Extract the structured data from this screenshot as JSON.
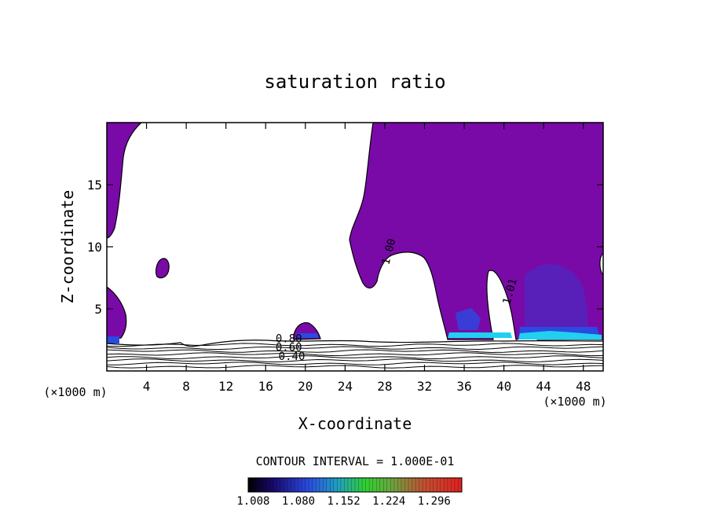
{
  "chart_data": {
    "type": "contour",
    "title": "saturation ratio",
    "xlabel": "X-coordinate",
    "ylabel": "Z-coordinate",
    "x_unit_label": "(×1000 m)",
    "x_unit_label_right": "(×1000 m)",
    "xlim": [
      0,
      50
    ],
    "ylim": [
      0,
      20
    ],
    "x_ticks": [
      4,
      8,
      12,
      16,
      20,
      24,
      28,
      32,
      36,
      40,
      44,
      48
    ],
    "y_ticks": [
      5,
      10,
      15
    ],
    "contour_interval_text": "CONTOUR INTERVAL = 1.000E-01",
    "contour_labels": [
      {
        "text": "0.80",
        "x": 17.0,
        "z": 2.3
      },
      {
        "text": "0.60",
        "x": 17.0,
        "z": 1.6
      },
      {
        "text": "0.40",
        "x": 17.3,
        "z": 0.9
      },
      {
        "text": "1.00",
        "x": 28.4,
        "z": 8.5
      },
      {
        "text": "1.01",
        "x": 40.6,
        "z": 5.3
      }
    ],
    "colorbar": {
      "min": 1.0,
      "max": 1.34,
      "tick_labels": [
        "1.008",
        "1.080",
        "1.152",
        "1.224",
        "1.296"
      ],
      "tick_values": [
        1.008,
        1.08,
        1.152,
        1.224,
        1.296
      ]
    },
    "saturated_fill_color": "#7a0aa8",
    "colors": {
      "low": "#1a0a70",
      "blue": "#2a4ae0",
      "cyan": "#20d0f0",
      "green": "#30d030",
      "red": "#e02020"
    },
    "unsaturated_lines_z": [
      0.35,
      0.6,
      0.85,
      1.1,
      1.35,
      1.6,
      1.85,
      2.1
    ]
  }
}
